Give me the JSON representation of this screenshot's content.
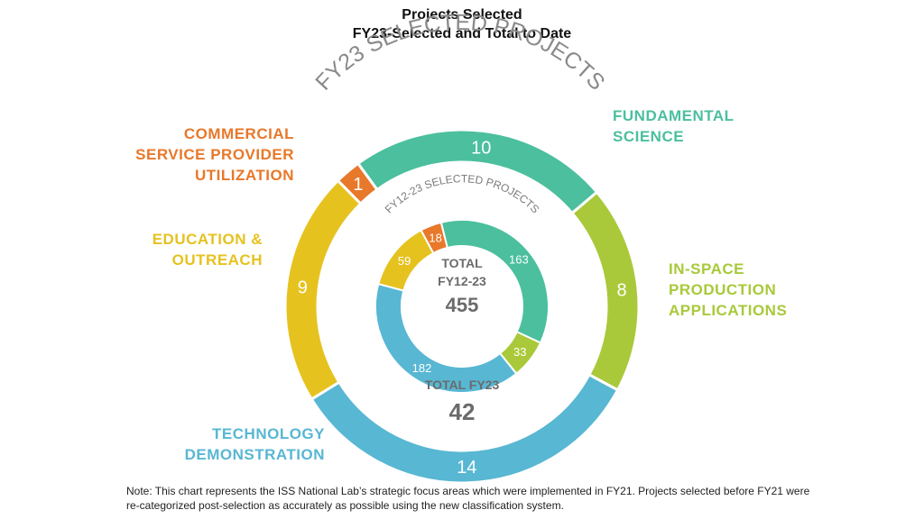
{
  "title": "Projects Selected",
  "subtitle": "FY23-Selected and Total to Date",
  "chart_data": {
    "type": "pie",
    "style": "nested-donut",
    "title": "Projects Selected",
    "subtitle": "FY23-Selected and Total to Date",
    "categories": [
      {
        "key": "fundamental",
        "label": "FUNDAMENTAL SCIENCE",
        "color": "#4bbf9e"
      },
      {
        "key": "inspace",
        "label": "IN-SPACE PRODUCTION APPLICATIONS",
        "color": "#a9c93a"
      },
      {
        "key": "tech",
        "label": "TECHNOLOGY DEMONSTRATION",
        "color": "#58b7d3"
      },
      {
        "key": "edu",
        "label": "EDUCATION & OUTREACH",
        "color": "#e6c21f"
      },
      {
        "key": "commercial",
        "label": "COMMERCIAL SERVICE PROVIDER UTILIZATION",
        "color": "#e8782a"
      }
    ],
    "series": [
      {
        "name": "FY23 SELECTED PROJECTS",
        "ring": "outer",
        "values": [
          10,
          8,
          14,
          9,
          1
        ]
      },
      {
        "name": "FY12-23 SELECTED PROJECTS",
        "ring": "inner",
        "values": [
          163,
          33,
          182,
          59,
          18
        ]
      }
    ]
  },
  "labels": {
    "commercial": [
      "COMMERCIAL",
      "SERVICE PROVIDER",
      "UTILIZATION"
    ],
    "fundamental": [
      "FUNDAMENTAL",
      "SCIENCE"
    ],
    "edu": [
      "EDUCATION &",
      "OUTREACH"
    ],
    "inspace": [
      "IN-SPACE",
      "PRODUCTION",
      "APPLICATIONS"
    ],
    "tech": [
      "TECHNOLOGY",
      "DEMONSTRATION"
    ]
  },
  "center": {
    "total_label": "TOTAL",
    "total_period": "FY12-23",
    "total_value": "455",
    "fy23_label": "TOTAL FY23",
    "fy23_value": "42"
  },
  "note": "Note: This chart represents the ISS National Lab’s strategic focus areas which were implemented in FY21. Projects selected before FY21 were re-categorized post-selection as accurately as possible using the new classification system."
}
